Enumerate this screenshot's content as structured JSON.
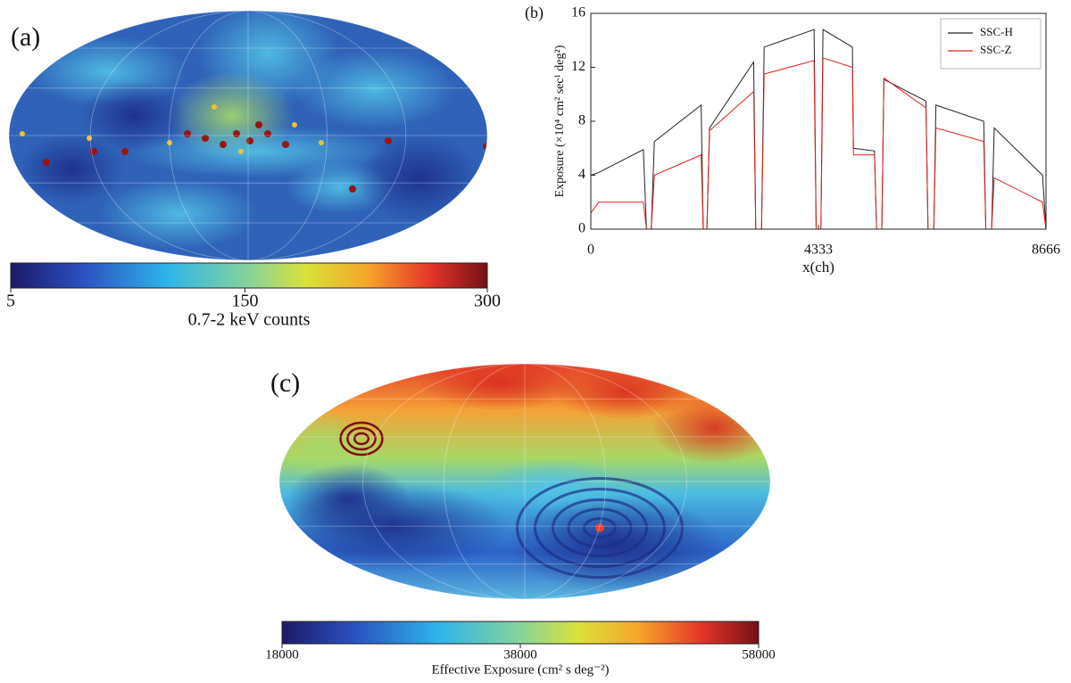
{
  "chart_data": [
    {
      "type": "map",
      "panel": "(a)",
      "colorbar": {
        "label": "0.7-2 keV counts",
        "lim": [
          5,
          300
        ],
        "ticks": [
          5,
          150,
          300
        ],
        "colormap": "jet"
      }
    },
    {
      "type": "line",
      "panel": "(b)",
      "xlabel": "x(ch)",
      "ylabel": "Exposure (×10⁴ cm² sec¹ deg²)",
      "x": [
        0,
        150,
        1000,
        1060,
        1150,
        1210,
        2100,
        2140,
        2210,
        2260,
        3100,
        3140,
        3250,
        3300,
        4250,
        4290,
        4380,
        4420,
        4980,
        5000,
        5400,
        5440,
        5540,
        5580,
        6380,
        6420,
        6530,
        6570,
        7480,
        7520,
        7630,
        7680,
        8600,
        8666
      ],
      "series": [
        {
          "name": "SSC-H",
          "color": "#222222",
          "values": [
            4.0,
            4.2,
            5.9,
            0,
            0,
            6.5,
            9.2,
            0,
            0,
            7.5,
            12.4,
            0,
            0,
            13.5,
            14.8,
            0,
            0,
            14.8,
            13.5,
            6.0,
            5.8,
            0,
            0,
            11.1,
            9.5,
            0,
            0,
            9.2,
            8.0,
            0,
            0,
            7.5,
            4.0,
            0
          ]
        },
        {
          "name": "SSC-Z",
          "color": "#e0201b",
          "values": [
            1.2,
            2.0,
            2.0,
            0,
            0,
            4.0,
            5.5,
            0,
            0,
            7.3,
            10.2,
            0,
            0,
            11.5,
            12.5,
            0,
            0,
            12.7,
            12.0,
            5.5,
            5.5,
            0,
            0,
            11.2,
            9.0,
            0,
            0,
            7.5,
            6.5,
            0,
            0,
            3.8,
            2.0,
            0
          ]
        }
      ],
      "xlim": [
        0,
        8666
      ],
      "xticks": [
        0,
        4333,
        8666
      ],
      "ylim": [
        0,
        16
      ],
      "yticks": [
        0,
        4,
        8,
        12,
        16
      ],
      "legend": "upper right"
    },
    {
      "type": "map",
      "panel": "(c)",
      "colorbar": {
        "label": "Effective Exposure (cm² s deg⁻²)",
        "lim": [
          18000,
          58000
        ],
        "ticks": [
          18000,
          38000,
          58000
        ],
        "colormap": "jet"
      }
    }
  ]
}
